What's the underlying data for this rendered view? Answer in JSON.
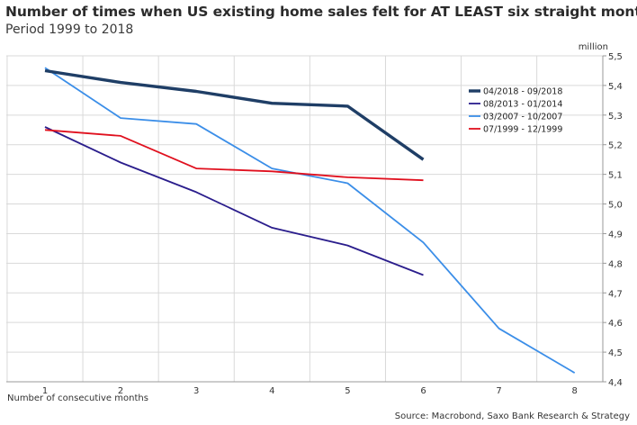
{
  "chart_data": {
    "type": "line",
    "title": "Number of times when US existing home sales felt for AT LEAST six straight months",
    "subtitle": "Period 1999 to 2018",
    "xlabel": "Number of consecutive months",
    "ylabel": "million",
    "source": "Source: Macrobond, Saxo Bank Research & Strategy",
    "x_ticks": [
      "1",
      "2",
      "3",
      "4",
      "5",
      "6",
      "7",
      "8"
    ],
    "y_ticks": [
      "5,5",
      "5,4",
      "5,3",
      "5,2",
      "5,1",
      "5,0",
      "4,9",
      "4,8",
      "4,7",
      "4,6",
      "4,5",
      "4,4"
    ],
    "xlim": [
      0.5,
      8.7
    ],
    "ylim": [
      4.4,
      5.5
    ],
    "grid": true,
    "y_axis_side": "right",
    "legend_position": "top-right",
    "series": [
      {
        "name": "04/2018 - 09/2018",
        "color": "#1f3e66",
        "line_width": "thick",
        "x": [
          1,
          2,
          3,
          4,
          5,
          6
        ],
        "values": [
          5.45,
          5.41,
          5.38,
          5.34,
          5.33,
          5.15
        ]
      },
      {
        "name": "08/2013 - 01/2014",
        "color": "#2a1d8c",
        "line_width": "normal",
        "x": [
          1,
          2,
          3,
          4,
          5,
          6
        ],
        "values": [
          5.26,
          5.14,
          5.04,
          4.92,
          4.86,
          4.76
        ]
      },
      {
        "name": "03/2007 - 10/2007",
        "color": "#3b8ee8",
        "line_width": "normal",
        "x": [
          1,
          2,
          3,
          4,
          5,
          6,
          7,
          8
        ],
        "values": [
          5.46,
          5.29,
          5.27,
          5.12,
          5.07,
          4.87,
          4.58,
          4.43
        ]
      },
      {
        "name": "07/1999 - 12/1999",
        "color": "#e0101e",
        "line_width": "normal",
        "x": [
          1,
          2,
          3,
          4,
          5,
          6
        ],
        "values": [
          5.25,
          5.23,
          5.12,
          5.11,
          5.09,
          5.08
        ]
      }
    ]
  }
}
